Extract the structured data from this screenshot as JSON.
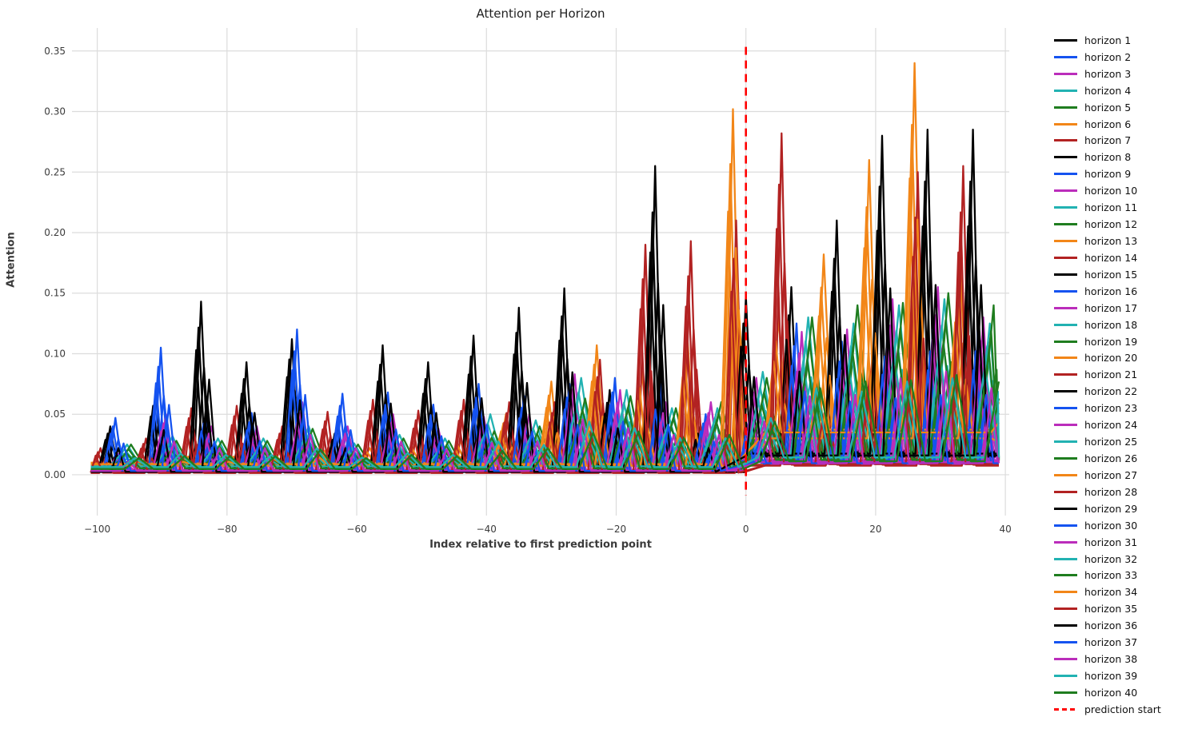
{
  "figure": {
    "title": "Attention per Horizon"
  },
  "chart_data": {
    "type": "line",
    "title": "Attention per Horizon",
    "xlabel": "Index relative to first prediction point",
    "ylabel": "Attention",
    "grid": true,
    "background": "#ffffff",
    "grid_color": "#dcdcdc",
    "tick_color": "#3b3b3b",
    "x_range": [
      -103.9,
      40.6
    ],
    "y_range": [
      -0.0337,
      0.369
    ],
    "xtick_vals": [
      -100,
      -80,
      -60,
      -40,
      -20,
      0,
      20,
      40
    ],
    "xtick_labels": [
      "−100",
      "−80",
      "−60",
      "−40",
      "−20",
      "0",
      "20",
      "40"
    ],
    "ytick_vals": [
      0.0,
      0.05,
      0.1,
      0.15,
      0.2,
      0.25,
      0.3,
      0.35
    ],
    "ytick_labels": [
      "0.00",
      "0.05",
      "0.10",
      "0.15",
      "0.20",
      "0.25",
      "0.30",
      "0.35"
    ],
    "palette": {
      "black": "#000000",
      "blue": "#1553f0",
      "magenta": "#bb2dbb",
      "teal": "#22b2b2",
      "green": "#1f7d1f",
      "orange": "#f28618",
      "darkred": "#b22222",
      "red": "#ff0000"
    },
    "weeks": [
      -98,
      -91,
      -84,
      -77,
      -70,
      -63,
      -56,
      -49,
      -42,
      -35,
      -28,
      -21,
      -14,
      -7,
      0,
      7,
      14,
      21,
      28,
      35
    ],
    "groups": {
      "black": {
        "offset": 0,
        "halfwidth": 1.1,
        "base": [
          0.003,
          0.02
        ],
        "heights": [
          0.04,
          0.067,
          0.143,
          0.093,
          0.112,
          0.04,
          0.107,
          0.093,
          0.115,
          0.138,
          0.154,
          0.07,
          0.255,
          0.04,
          0.147,
          0.155,
          0.21,
          0.28,
          0.285,
          0.285
        ]
      },
      "blue": {
        "offset": 0.8,
        "halfwidth": 1.1,
        "base": [
          0.004,
          0.012
        ],
        "heights": [
          0.047,
          0.105,
          0.05,
          0.051,
          0.12,
          0.067,
          0.068,
          0.058,
          0.075,
          0.065,
          0.075,
          0.08,
          0.075,
          0.05,
          0.05,
          0.125,
          0.11,
          0.115,
          0.12,
          0.12
        ]
      },
      "magenta": {
        "offset": 1.6,
        "halfwidth": 1.3,
        "base": [
          0.004,
          0.012
        ],
        "heights": [
          0.02,
          0.05,
          0.04,
          0.04,
          0.06,
          0.04,
          0.05,
          0.038,
          0.048,
          0.05,
          0.083,
          0.07,
          0.06,
          0.06,
          0.08,
          0.118,
          0.12,
          0.145,
          0.155,
          0.13
        ]
      },
      "teal": {
        "offset": 2.6,
        "halfwidth": 2.0,
        "base": [
          0.008,
          0.018
        ],
        "heights": [
          0.025,
          0.032,
          0.03,
          0.03,
          0.04,
          0.026,
          0.033,
          0.03,
          0.05,
          0.045,
          0.08,
          0.07,
          0.055,
          0.055,
          0.085,
          0.13,
          0.125,
          0.14,
          0.145,
          0.125
        ]
      },
      "green": {
        "offset": 3.2,
        "halfwidth": 2.2,
        "base": [
          0.006,
          0.014
        ],
        "heights": [
          0.025,
          0.028,
          0.028,
          0.028,
          0.038,
          0.025,
          0.03,
          0.028,
          0.036,
          0.04,
          0.063,
          0.065,
          0.055,
          0.06,
          0.08,
          0.13,
          0.14,
          0.142,
          0.15,
          0.14
        ]
      },
      "orange": {
        "offset": 5.0,
        "halfwidth": 1.2,
        "base": [
          0.01,
          0.04
        ],
        "heights": [
          0.015,
          0.015,
          0.015,
          0.018,
          0.02,
          0.022,
          0.025,
          0.028,
          0.05,
          0.077,
          0.107,
          0.085,
          0.112,
          0.302,
          0.13,
          0.182,
          0.26,
          0.34,
          0.175,
          0.06
        ]
      },
      "darkred": {
        "offset": -1.5,
        "halfwidth": 1.1,
        "base": [
          0.002,
          0.01
        ],
        "heights": [
          0.022,
          0.03,
          0.055,
          0.057,
          0.04,
          0.052,
          0.062,
          0.053,
          0.062,
          0.06,
          0.06,
          0.095,
          0.19,
          0.193,
          0.21,
          0.282,
          0.06,
          0.1,
          0.25,
          0.255
        ]
      }
    },
    "series": [
      {
        "name": "horizon 1",
        "group": "black",
        "f": 1.0,
        "dx": 0
      },
      {
        "name": "horizon 2",
        "group": "blue",
        "f": 1.0,
        "dx": 0
      },
      {
        "name": "horizon 3",
        "group": "magenta",
        "f": 1.0,
        "dx": 0
      },
      {
        "name": "horizon 4",
        "group": "teal",
        "f": 1.0,
        "dx": 0
      },
      {
        "name": "horizon 5",
        "group": "green",
        "f": 1.0,
        "dx": 0
      },
      {
        "name": "horizon 6",
        "group": "orange",
        "f": 1.0,
        "dx": 0
      },
      {
        "name": "horizon 7",
        "group": "darkred",
        "f": 1.0,
        "dx": 0
      },
      {
        "name": "horizon 8",
        "group": "black",
        "f": 0.62,
        "dx": 0.45
      },
      {
        "name": "horizon 9",
        "group": "blue",
        "f": 0.62,
        "dx": 0.45
      },
      {
        "name": "horizon 10",
        "group": "magenta",
        "f": 0.62,
        "dx": 0.45
      },
      {
        "name": "horizon 11",
        "group": "teal",
        "f": 0.62,
        "dx": 0.45
      },
      {
        "name": "horizon 12",
        "group": "green",
        "f": 0.62,
        "dx": 0.45
      },
      {
        "name": "horizon 13",
        "group": "orange",
        "f": 0.62,
        "dx": 0.45
      },
      {
        "name": "horizon 14",
        "group": "darkred",
        "f": 0.62,
        "dx": 0.45
      },
      {
        "name": "horizon 15",
        "group": "black",
        "f": 0.85,
        "dx": -0.4
      },
      {
        "name": "horizon 16",
        "group": "blue",
        "f": 0.85,
        "dx": -0.4
      },
      {
        "name": "horizon 17",
        "group": "magenta",
        "f": 0.85,
        "dx": -0.4
      },
      {
        "name": "horizon 18",
        "group": "teal",
        "f": 0.85,
        "dx": -0.4
      },
      {
        "name": "horizon 19",
        "group": "green",
        "f": 0.85,
        "dx": -0.4
      },
      {
        "name": "horizon 20",
        "group": "orange",
        "f": 0.85,
        "dx": -0.4
      },
      {
        "name": "horizon 21",
        "group": "darkred",
        "f": 0.85,
        "dx": -0.4
      },
      {
        "name": "horizon 22",
        "group": "black",
        "f": 0.45,
        "dx": 0.9
      },
      {
        "name": "horizon 23",
        "group": "blue",
        "f": 0.45,
        "dx": 0.9
      },
      {
        "name": "horizon 24",
        "group": "magenta",
        "f": 0.45,
        "dx": 0.9
      },
      {
        "name": "horizon 25",
        "group": "teal",
        "f": 0.45,
        "dx": 0.9
      },
      {
        "name": "horizon 26",
        "group": "green",
        "f": 0.45,
        "dx": 0.9
      },
      {
        "name": "horizon 27",
        "group": "orange",
        "f": 0.45,
        "dx": 0.9
      },
      {
        "name": "horizon 28",
        "group": "darkred",
        "f": 0.45,
        "dx": 0.9
      },
      {
        "name": "horizon 29",
        "group": "black",
        "f": 0.72,
        "dx": -0.75
      },
      {
        "name": "horizon 30",
        "group": "blue",
        "f": 0.72,
        "dx": -0.75
      },
      {
        "name": "horizon 31",
        "group": "magenta",
        "f": 0.72,
        "dx": -0.75
      },
      {
        "name": "horizon 32",
        "group": "teal",
        "f": 0.72,
        "dx": -0.75
      },
      {
        "name": "horizon 33",
        "group": "green",
        "f": 0.72,
        "dx": -0.75
      },
      {
        "name": "horizon 34",
        "group": "orange",
        "f": 0.72,
        "dx": -0.75
      },
      {
        "name": "horizon 35",
        "group": "darkred",
        "f": 0.72,
        "dx": -0.75
      },
      {
        "name": "horizon 36",
        "group": "black",
        "f": 0.55,
        "dx": 1.25
      },
      {
        "name": "horizon 37",
        "group": "blue",
        "f": 0.55,
        "dx": 1.25
      },
      {
        "name": "horizon 38",
        "group": "magenta",
        "f": 0.55,
        "dx": 1.25
      },
      {
        "name": "horizon 39",
        "group": "teal",
        "f": 0.55,
        "dx": 1.25
      },
      {
        "name": "horizon 40",
        "group": "green",
        "f": 0.55,
        "dx": 1.25
      }
    ],
    "prediction_start": {
      "x": 0,
      "label": "prediction start",
      "color": "#ff0000",
      "style": "dashed",
      "y_span": [
        -0.0172,
        0.3534
      ]
    },
    "legend": {
      "position": "right"
    },
    "x_data_range": [
      -101,
      39
    ]
  }
}
